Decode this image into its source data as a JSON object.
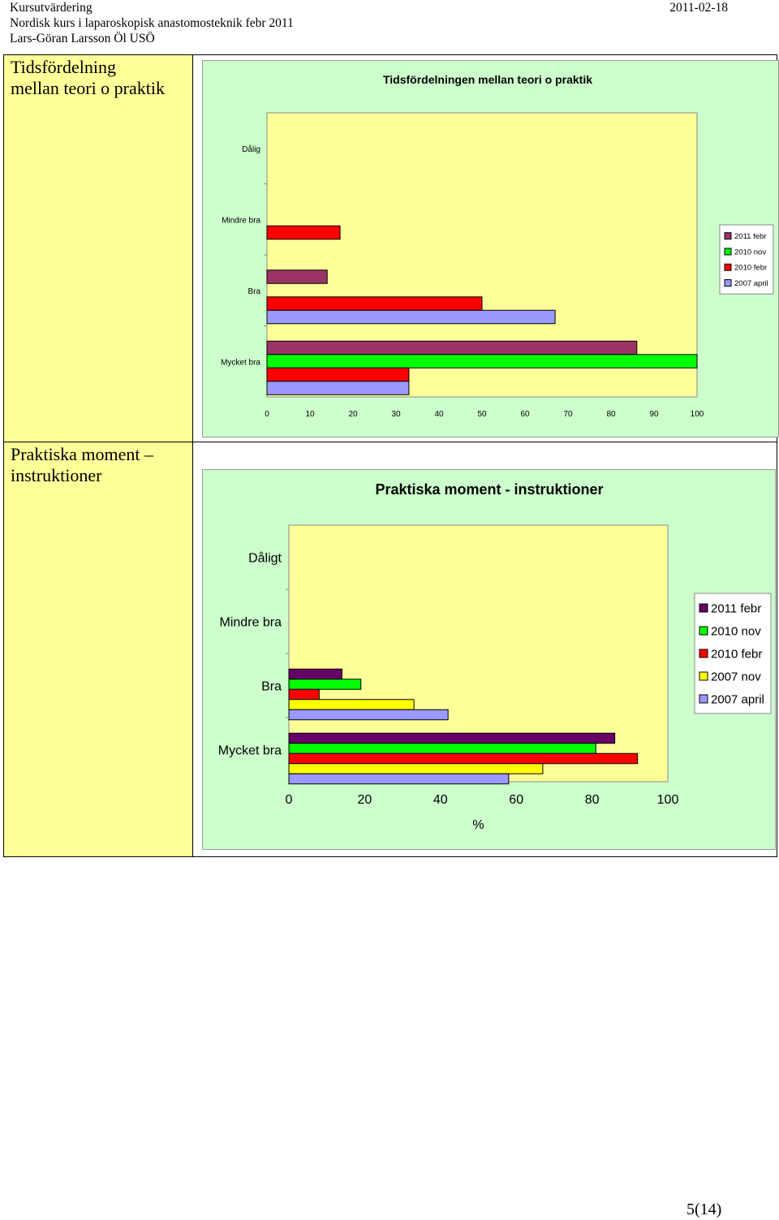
{
  "header": {
    "line1": "Kursutvärdering",
    "line2": "Nordisk kurs i laparoskopisk anastomosteknik febr 2011",
    "line3": "Lars-Göran Larsson Öl USÖ",
    "date": "2011-02-18"
  },
  "sections": [
    {
      "label_line1": "Tidsfördelning",
      "label_line2": "mellan teori o praktik"
    },
    {
      "label_line1": "Praktiska moment –",
      "label_line2": "instruktioner"
    }
  ],
  "page_number": "5(14)",
  "chart_data": [
    {
      "type": "bar",
      "orientation": "horizontal",
      "title": "Tidsfördelningen mellan teori o praktik",
      "xlabel": "",
      "ylabel": "",
      "categories": [
        "Dålig",
        "Mindre bra",
        "Bra",
        "Mycket bra"
      ],
      "xlim": [
        0,
        100
      ],
      "xticks": [
        "0",
        "10",
        "20",
        "30",
        "40",
        "50",
        "60",
        "70",
        "80",
        "90",
        "100"
      ],
      "legend_position": "right",
      "series": [
        {
          "name": "2011 febr",
          "color": "#993366",
          "values": [
            0,
            0,
            14,
            86
          ]
        },
        {
          "name": "2010 nov",
          "color": "#00ff00",
          "values": [
            0,
            0,
            0,
            100
          ]
        },
        {
          "name": "2010 febr",
          "color": "#ff0000",
          "values": [
            0,
            17,
            50,
            33
          ]
        },
        {
          "name": "2007 april",
          "color": "#9999ff",
          "values": [
            0,
            0,
            67,
            33
          ]
        }
      ],
      "plot_bg": "#ffff99",
      "chart_bg": "#ccffcc"
    },
    {
      "type": "bar",
      "orientation": "horizontal",
      "title": "Praktiska moment - instruktioner",
      "xlabel": "%",
      "ylabel": "",
      "categories": [
        "Dåligt",
        "Mindre bra",
        "Bra",
        "Mycket bra"
      ],
      "xlim": [
        0,
        100
      ],
      "xticks": [
        "0",
        "20",
        "40",
        "60",
        "80",
        "100"
      ],
      "legend_position": "right",
      "series": [
        {
          "name": "2011 febr",
          "color": "#660066",
          "values": [
            0,
            0,
            14,
            86
          ]
        },
        {
          "name": "2010 nov",
          "color": "#00ff00",
          "values": [
            0,
            0,
            19,
            81
          ]
        },
        {
          "name": "2010 febr",
          "color": "#ff0000",
          "values": [
            0,
            0,
            8,
            92
          ]
        },
        {
          "name": "2007 nov",
          "color": "#ffff00",
          "values": [
            0,
            0,
            33,
            67
          ]
        },
        {
          "name": "2007 april",
          "color": "#9999ff",
          "values": [
            0,
            0,
            42,
            58
          ]
        }
      ],
      "plot_bg": "#ffff99",
      "chart_bg": "#ccffcc"
    }
  ]
}
